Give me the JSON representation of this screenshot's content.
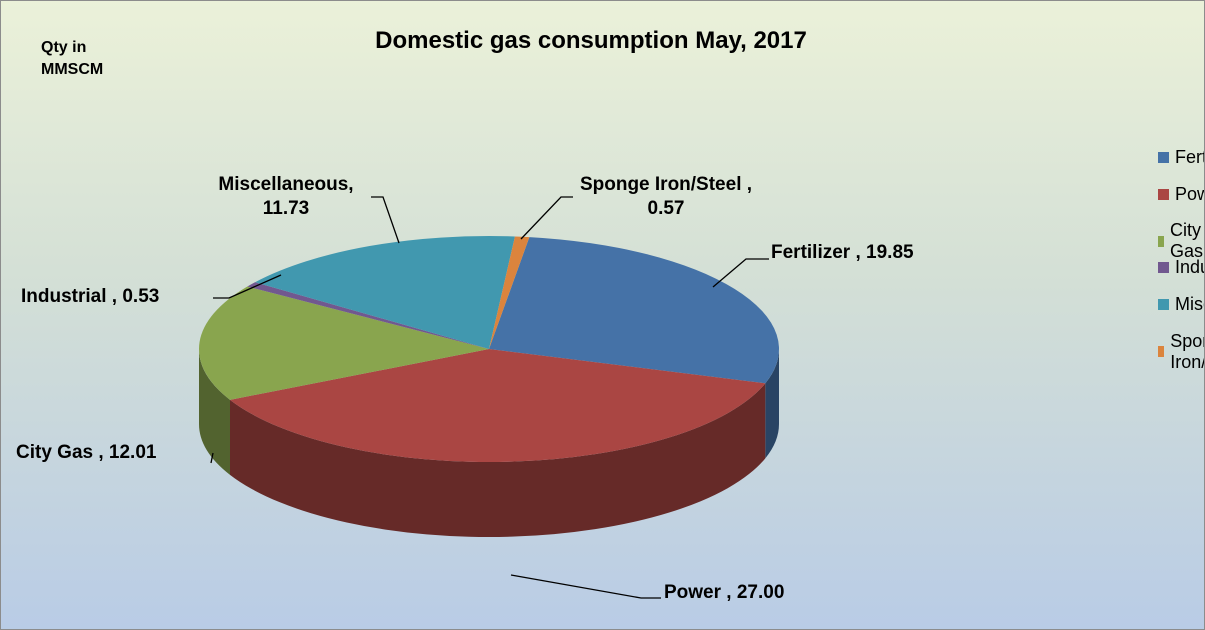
{
  "chart_data": {
    "type": "pie",
    "title": "Domestic gas consumption May, 2017",
    "annotation": "Qty in\nMMSCM",
    "categories": [
      "Fertilizer",
      "Power",
      "City Gas",
      "Industrial",
      "Miscellaneous",
      "Sponge Iron/Steel"
    ],
    "values": [
      19.85,
      27.0,
      12.01,
      0.53,
      11.73,
      0.57
    ],
    "value_labels": [
      "Fertilizer , 19.85",
      "Power , 27.00",
      "City Gas , 12.01",
      "Industrial , 0.53",
      "Miscellaneous,\n11.73",
      "Sponge Iron/Steel ,\n0.57"
    ],
    "colors": [
      "#4572a7",
      "#aa4643",
      "#89a54e",
      "#71588f",
      "#4198af",
      "#db843d"
    ],
    "legend": "right"
  }
}
